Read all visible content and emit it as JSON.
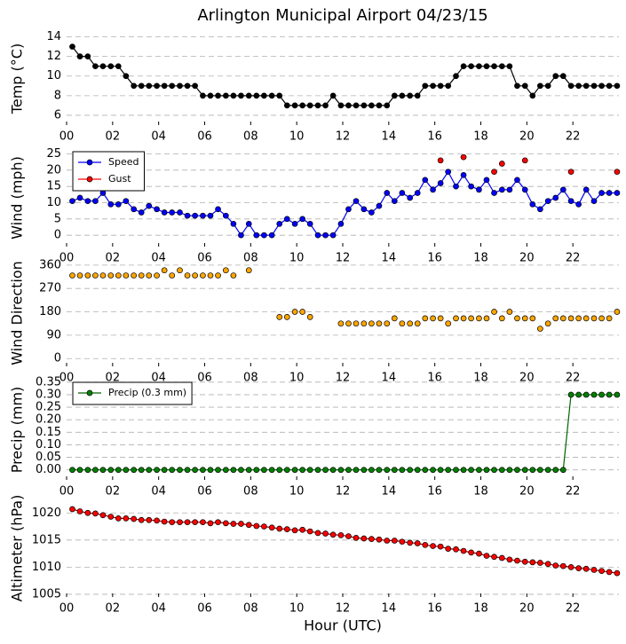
{
  "chart_data": [
    {
      "type": "line",
      "title": "Arlington Municipal Airport 04/23/15",
      "ylabel": "Temp (°C)",
      "grid": true,
      "xlim": [
        0,
        24
      ],
      "ylim": [
        5,
        14.5
      ],
      "yticks": [
        6,
        8,
        10,
        12,
        14
      ],
      "xticks": [
        {
          "value": 0,
          "label": "00"
        },
        {
          "value": 2,
          "label": "02"
        },
        {
          "value": 4,
          "label": "04"
        },
        {
          "value": 6,
          "label": "06"
        },
        {
          "value": 8,
          "label": "08"
        },
        {
          "value": 10,
          "label": "10"
        },
        {
          "value": 12,
          "label": "12"
        },
        {
          "value": 14,
          "label": "14"
        },
        {
          "value": 16,
          "label": "16"
        },
        {
          "value": 18,
          "label": "18"
        },
        {
          "value": 20,
          "label": "20"
        },
        {
          "value": 22,
          "label": "22"
        }
      ],
      "x": [
        0.25,
        0.58,
        0.92,
        1.25,
        1.58,
        1.92,
        2.25,
        2.58,
        2.92,
        3.25,
        3.58,
        3.92,
        4.25,
        4.58,
        4.92,
        5.25,
        5.58,
        5.92,
        6.25,
        6.58,
        6.92,
        7.25,
        7.58,
        7.92,
        8.25,
        8.58,
        8.92,
        9.25,
        9.58,
        9.92,
        10.25,
        10.58,
        10.92,
        11.25,
        11.58,
        11.92,
        12.25,
        12.58,
        12.92,
        13.25,
        13.58,
        13.92,
        14.25,
        14.58,
        14.92,
        15.25,
        15.58,
        15.92,
        16.25,
        16.58,
        16.92,
        17.25,
        17.58,
        17.92,
        18.25,
        18.58,
        18.92,
        19.25,
        19.58,
        19.92,
        20.25,
        20.58,
        20.92,
        21.25,
        21.58,
        21.92,
        22.25,
        22.58,
        22.92,
        23.25,
        23.58,
        23.92
      ],
      "series": [
        {
          "color": "#000000",
          "marker": "#000000",
          "line": true,
          "values": [
            13,
            12,
            12,
            11,
            11,
            11,
            11,
            10,
            9,
            9,
            9,
            9,
            9,
            9,
            9,
            9,
            9,
            8,
            8,
            8,
            8,
            8,
            8,
            8,
            8,
            8,
            8,
            8,
            7,
            7,
            7,
            7,
            7,
            7,
            8,
            7,
            7,
            7,
            7,
            7,
            7,
            7,
            8,
            8,
            8,
            8,
            9,
            9,
            9,
            9,
            10,
            11,
            11,
            11,
            11,
            11,
            11,
            11,
            9,
            9,
            8,
            9,
            9,
            10,
            10,
            9,
            9,
            9,
            9,
            9,
            9,
            9
          ]
        }
      ]
    },
    {
      "type": "line",
      "ylabel": "Wind (mph)",
      "grid": true,
      "legend": "upper left",
      "xlim": [
        0,
        24
      ],
      "ylim": [
        -3.5,
        26.5
      ],
      "yticks": [
        0,
        5,
        10,
        15,
        20,
        25
      ],
      "xticks": [
        {
          "value": 0,
          "label": "00"
        },
        {
          "value": 2,
          "label": "02"
        },
        {
          "value": 4,
          "label": "04"
        },
        {
          "value": 6,
          "label": "06"
        },
        {
          "value": 8,
          "label": "08"
        },
        {
          "value": 10,
          "label": "10"
        },
        {
          "value": 12,
          "label": "12"
        },
        {
          "value": 14,
          "label": "14"
        },
        {
          "value": 16,
          "label": "16"
        },
        {
          "value": 18,
          "label": "18"
        },
        {
          "value": 20,
          "label": "20"
        },
        {
          "value": 22,
          "label": "22"
        }
      ],
      "x": [
        0.25,
        0.58,
        0.92,
        1.25,
        1.58,
        1.92,
        2.25,
        2.58,
        2.92,
        3.25,
        3.58,
        3.92,
        4.25,
        4.58,
        4.92,
        5.25,
        5.58,
        5.92,
        6.25,
        6.58,
        6.92,
        7.25,
        7.58,
        7.92,
        8.25,
        8.58,
        8.92,
        9.25,
        9.58,
        9.92,
        10.25,
        10.58,
        10.92,
        11.25,
        11.58,
        11.92,
        12.25,
        12.58,
        12.92,
        13.25,
        13.58,
        13.92,
        14.25,
        14.58,
        14.92,
        15.25,
        15.58,
        15.92,
        16.25,
        16.58,
        16.92,
        17.25,
        17.58,
        17.92,
        18.25,
        18.58,
        18.92,
        19.25,
        19.58,
        19.92,
        20.25,
        20.58,
        20.92,
        21.25,
        21.58,
        21.92,
        22.25,
        22.58,
        22.92,
        23.25,
        23.58,
        23.92
      ],
      "series": [
        {
          "name": "Speed",
          "color": "#0000ff",
          "marker": "#0000ff",
          "line": true,
          "values": [
            10.5,
            11.5,
            10.5,
            10.5,
            13,
            9.5,
            9.5,
            10.5,
            8,
            7,
            9,
            8,
            7,
            7,
            7,
            6,
            6,
            6,
            6,
            8,
            6,
            3.5,
            0,
            3.5,
            0,
            0,
            0,
            3.5,
            5,
            3.5,
            5,
            3.5,
            0,
            0,
            0,
            3.5,
            8,
            10.5,
            8,
            7,
            9,
            13,
            10.5,
            13,
            11.5,
            13,
            17,
            14,
            16,
            19.5,
            15,
            18.5,
            15,
            14,
            17,
            13,
            14,
            14,
            17,
            14,
            9.5,
            8,
            10.5,
            11.5,
            14,
            10.5,
            9.5,
            14,
            10.5,
            13,
            13,
            13
          ]
        },
        {
          "name": "Gust",
          "color": "#ff0000",
          "marker": "#ff0000",
          "line": false,
          "values": [
            null,
            null,
            null,
            null,
            null,
            null,
            null,
            null,
            null,
            null,
            null,
            null,
            null,
            null,
            null,
            null,
            null,
            null,
            null,
            null,
            null,
            null,
            null,
            null,
            null,
            null,
            null,
            null,
            null,
            null,
            null,
            null,
            null,
            null,
            null,
            null,
            null,
            null,
            null,
            null,
            null,
            null,
            null,
            null,
            null,
            null,
            null,
            null,
            23,
            null,
            null,
            24,
            null,
            null,
            null,
            19.5,
            22,
            null,
            null,
            23,
            null,
            null,
            null,
            null,
            null,
            19.5,
            null,
            null,
            null,
            null,
            null,
            19.5
          ]
        }
      ]
    },
    {
      "type": "line",
      "ylabel": "Wind Direction",
      "grid": true,
      "xlim": [
        0,
        24
      ],
      "ylim": [
        -30,
        380
      ],
      "yticks": [
        0,
        90,
        180,
        270,
        360
      ],
      "xticks": [
        {
          "value": 0,
          "label": "00"
        },
        {
          "value": 2,
          "label": "02"
        },
        {
          "value": 4,
          "label": "04"
        },
        {
          "value": 6,
          "label": "06"
        },
        {
          "value": 8,
          "label": "08"
        },
        {
          "value": 10,
          "label": "10"
        },
        {
          "value": 12,
          "label": "12"
        },
        {
          "value": 14,
          "label": "14"
        },
        {
          "value": 16,
          "label": "16"
        },
        {
          "value": 18,
          "label": "18"
        },
        {
          "value": 20,
          "label": "20"
        },
        {
          "value": 22,
          "label": "22"
        }
      ],
      "x": [
        0.25,
        0.58,
        0.92,
        1.25,
        1.58,
        1.92,
        2.25,
        2.58,
        2.92,
        3.25,
        3.58,
        3.92,
        4.25,
        4.58,
        4.92,
        5.25,
        5.58,
        5.92,
        6.25,
        6.58,
        6.92,
        7.25,
        7.58,
        7.92,
        8.25,
        8.58,
        8.92,
        9.25,
        9.58,
        9.92,
        10.25,
        10.58,
        10.92,
        11.25,
        11.58,
        11.92,
        12.25,
        12.58,
        12.92,
        13.25,
        13.58,
        13.92,
        14.25,
        14.58,
        14.92,
        15.25,
        15.58,
        15.92,
        16.25,
        16.58,
        16.92,
        17.25,
        17.58,
        17.92,
        18.25,
        18.58,
        18.92,
        19.25,
        19.58,
        19.92,
        20.25,
        20.58,
        20.92,
        21.25,
        21.58,
        21.92,
        22.25,
        22.58,
        22.92,
        23.25,
        23.58,
        23.92
      ],
      "series": [
        {
          "color": "#ffa500",
          "marker": "#ffa500",
          "line": false,
          "values": [
            320,
            320,
            320,
            320,
            320,
            320,
            320,
            320,
            320,
            320,
            320,
            320,
            340,
            320,
            340,
            320,
            320,
            320,
            320,
            320,
            340,
            320,
            null,
            340,
            null,
            null,
            null,
            160,
            160,
            180,
            180,
            160,
            null,
            null,
            null,
            135,
            135,
            135,
            135,
            135,
            135,
            135,
            155,
            135,
            135,
            135,
            155,
            155,
            155,
            135,
            155,
            155,
            155,
            155,
            155,
            180,
            155,
            180,
            155,
            155,
            155,
            115,
            135,
            155,
            155,
            155,
            155,
            155,
            155,
            155,
            155,
            180
          ]
        }
      ]
    },
    {
      "type": "line",
      "ylabel": "Precip (mm)",
      "grid": true,
      "legend": "upper left",
      "xlim": [
        0,
        24
      ],
      "ylim": [
        -0.04,
        0.36
      ],
      "yticks": [
        {
          "value": 0,
          "label": "0.00"
        },
        0.05,
        {
          "value": 0.1,
          "label": "0.10"
        },
        0.15,
        {
          "value": 0.2,
          "label": "0.20"
        },
        0.25,
        {
          "value": 0.3,
          "label": "0.30"
        },
        0.35
      ],
      "xticks": [
        {
          "value": 0,
          "label": "00"
        },
        {
          "value": 2,
          "label": "02"
        },
        {
          "value": 4,
          "label": "04"
        },
        {
          "value": 6,
          "label": "06"
        },
        {
          "value": 8,
          "label": "08"
        },
        {
          "value": 10,
          "label": "10"
        },
        {
          "value": 12,
          "label": "12"
        },
        {
          "value": 14,
          "label": "14"
        },
        {
          "value": 16,
          "label": "16"
        },
        {
          "value": 18,
          "label": "18"
        },
        {
          "value": 20,
          "label": "20"
        },
        {
          "value": 22,
          "label": "22"
        }
      ],
      "x": [
        0.25,
        0.58,
        0.92,
        1.25,
        1.58,
        1.92,
        2.25,
        2.58,
        2.92,
        3.25,
        3.58,
        3.92,
        4.25,
        4.58,
        4.92,
        5.25,
        5.58,
        5.92,
        6.25,
        6.58,
        6.92,
        7.25,
        7.58,
        7.92,
        8.25,
        8.58,
        8.92,
        9.25,
        9.58,
        9.92,
        10.25,
        10.58,
        10.92,
        11.25,
        11.58,
        11.92,
        12.25,
        12.58,
        12.92,
        13.25,
        13.58,
        13.92,
        14.25,
        14.58,
        14.92,
        15.25,
        15.58,
        15.92,
        16.25,
        16.58,
        16.92,
        17.25,
        17.58,
        17.92,
        18.25,
        18.58,
        18.92,
        19.25,
        19.58,
        19.92,
        20.25,
        20.58,
        20.92,
        21.25,
        21.58,
        21.92,
        22.25,
        22.58,
        22.92,
        23.25,
        23.58,
        23.92
      ],
      "series": [
        {
          "name": "Precip (0.3 mm)",
          "color": "#006400",
          "marker": "#008000",
          "line": true,
          "values": [
            0,
            0,
            0,
            0,
            0,
            0,
            0,
            0,
            0,
            0,
            0,
            0,
            0,
            0,
            0,
            0,
            0,
            0,
            0,
            0,
            0,
            0,
            0,
            0,
            0,
            0,
            0,
            0,
            0,
            0,
            0,
            0,
            0,
            0,
            0,
            0,
            0,
            0,
            0,
            0,
            0,
            0,
            0,
            0,
            0,
            0,
            0,
            0,
            0,
            0,
            0,
            0,
            0,
            0,
            0,
            0,
            0,
            0,
            0,
            0,
            0,
            0,
            0,
            0,
            0,
            0.3,
            0.3,
            0.3,
            0.3,
            0.3,
            0.3,
            0.3
          ]
        }
      ]
    },
    {
      "type": "line",
      "ylabel": "Altimeter (hPa)",
      "xlabel": "Hour (UTC)",
      "grid": true,
      "xlim": [
        0,
        24
      ],
      "ylim": [
        1004.5,
        1022.5
      ],
      "yticks": [
        1005,
        1010,
        1015,
        1020
      ],
      "xticks": [
        {
          "value": 0,
          "label": "00"
        },
        {
          "value": 2,
          "label": "02"
        },
        {
          "value": 4,
          "label": "04"
        },
        {
          "value": 6,
          "label": "06"
        },
        {
          "value": 8,
          "label": "08"
        },
        {
          "value": 10,
          "label": "10"
        },
        {
          "value": 12,
          "label": "12"
        },
        {
          "value": 14,
          "label": "14"
        },
        {
          "value": 16,
          "label": "16"
        },
        {
          "value": 18,
          "label": "18"
        },
        {
          "value": 20,
          "label": "20"
        },
        {
          "value": 22,
          "label": "22"
        }
      ],
      "x": [
        0.25,
        0.58,
        0.92,
        1.25,
        1.58,
        1.92,
        2.25,
        2.58,
        2.92,
        3.25,
        3.58,
        3.92,
        4.25,
        4.58,
        4.92,
        5.25,
        5.58,
        5.92,
        6.25,
        6.58,
        6.92,
        7.25,
        7.58,
        7.92,
        8.25,
        8.58,
        8.92,
        9.25,
        9.58,
        9.92,
        10.25,
        10.58,
        10.92,
        11.25,
        11.58,
        11.92,
        12.25,
        12.58,
        12.92,
        13.25,
        13.58,
        13.92,
        14.25,
        14.58,
        14.92,
        15.25,
        15.58,
        15.92,
        16.25,
        16.58,
        16.92,
        17.25,
        17.58,
        17.92,
        18.25,
        18.58,
        18.92,
        19.25,
        19.58,
        19.92,
        20.25,
        20.58,
        20.92,
        21.25,
        21.58,
        21.92,
        22.25,
        22.58,
        22.92,
        23.25,
        23.58,
        23.92
      ],
      "series": [
        {
          "color": "#8b0000",
          "marker": "#ff0000",
          "line": true,
          "values": [
            1020.7,
            1020.3,
            1020.0,
            1019.9,
            1019.6,
            1019.3,
            1019.0,
            1019.0,
            1018.9,
            1018.7,
            1018.7,
            1018.6,
            1018.4,
            1018.3,
            1018.3,
            1018.3,
            1018.3,
            1018.3,
            1018.1,
            1018.3,
            1018.1,
            1018.0,
            1018.0,
            1017.8,
            1017.6,
            1017.5,
            1017.3,
            1017.1,
            1017.0,
            1016.8,
            1016.9,
            1016.6,
            1016.3,
            1016.2,
            1016.0,
            1015.9,
            1015.7,
            1015.4,
            1015.3,
            1015.2,
            1015.1,
            1014.9,
            1014.9,
            1014.7,
            1014.5,
            1014.4,
            1014.1,
            1013.9,
            1013.8,
            1013.4,
            1013.3,
            1013.0,
            1012.7,
            1012.5,
            1012.1,
            1011.9,
            1011.7,
            1011.4,
            1011.2,
            1011.0,
            1010.9,
            1010.8,
            1010.6,
            1010.3,
            1010.2,
            1010.0,
            1009.8,
            1009.7,
            1009.5,
            1009.3,
            1009.1,
            1008.9
          ]
        }
      ]
    }
  ]
}
